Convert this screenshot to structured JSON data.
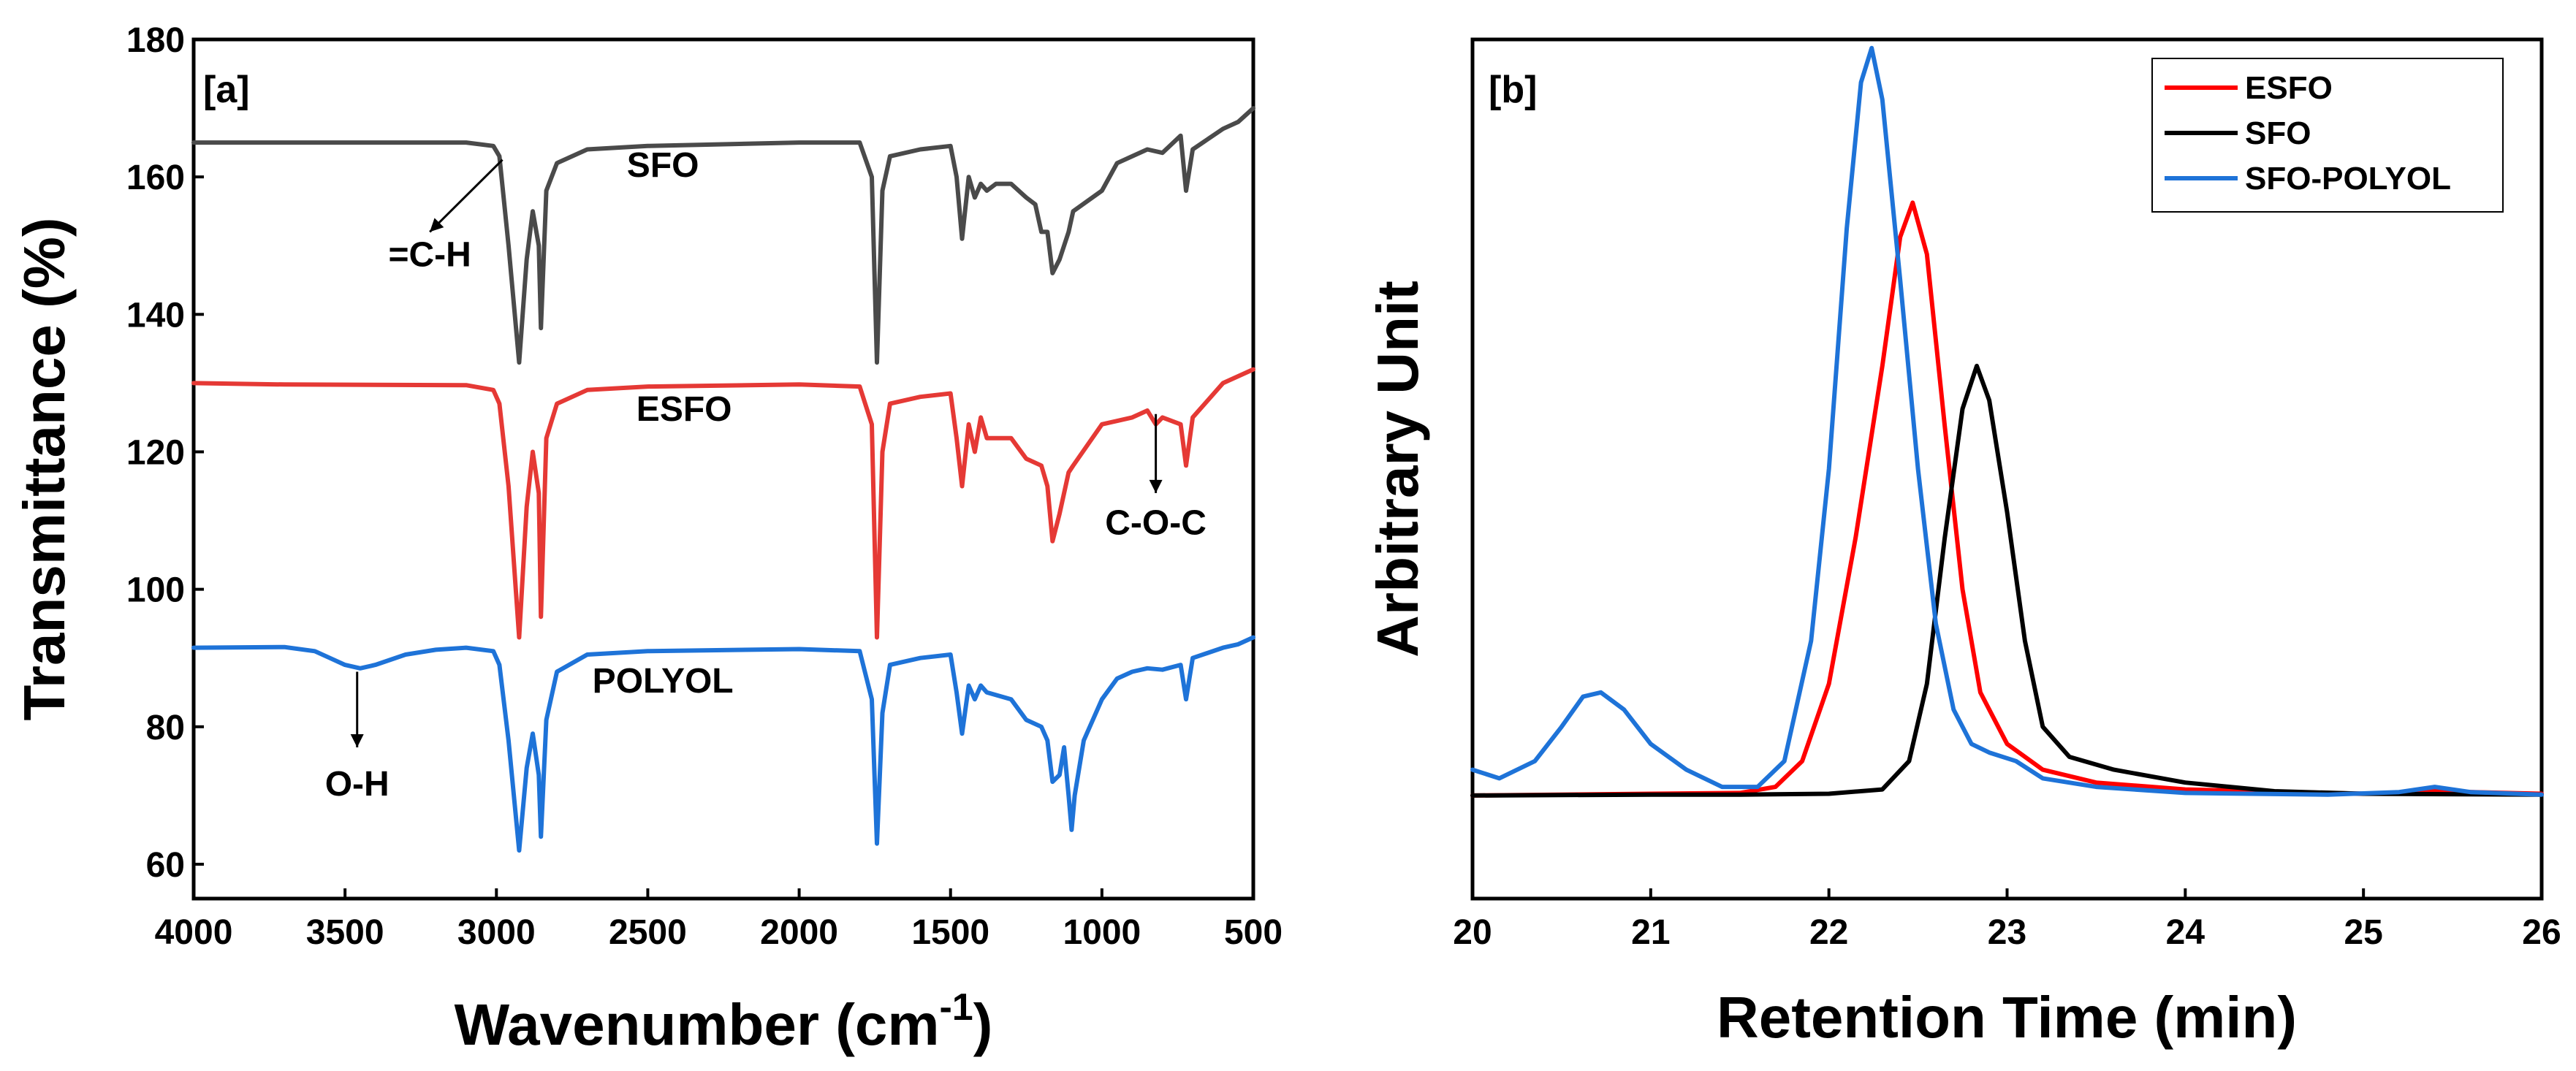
{
  "chart_data": [
    {
      "type": "line",
      "panel_label": "[a]",
      "xlabel": "Wavenumber (cm",
      "xlabel_sup": "-1",
      "xlabel_end": ")",
      "ylabel": "Transmittance (%)",
      "xlim": [
        4000,
        500
      ],
      "ylim": [
        55,
        180
      ],
      "x_ticks": [
        4000,
        3500,
        3000,
        2500,
        2000,
        1500,
        1000,
        500
      ],
      "y_ticks": [
        60,
        80,
        100,
        120,
        140,
        160,
        180
      ],
      "series": [
        {
          "name": "SFO",
          "color": "#4a4a4a",
          "points": [
            [
              4000,
              165
            ],
            [
              3700,
              165
            ],
            [
              3100,
              165
            ],
            [
              3010,
              164.5
            ],
            [
              2990,
              163
            ],
            [
              2960,
              150
            ],
            [
              2925,
              133
            ],
            [
              2900,
              148
            ],
            [
              2880,
              155
            ],
            [
              2860,
              150
            ],
            [
              2853,
              138
            ],
            [
              2835,
              158
            ],
            [
              2800,
              162
            ],
            [
              2700,
              164
            ],
            [
              2500,
              164.5
            ],
            [
              2000,
              165
            ],
            [
              1800,
              165
            ],
            [
              1760,
              160
            ],
            [
              1743,
              133
            ],
            [
              1725,
              158
            ],
            [
              1700,
              163
            ],
            [
              1600,
              164
            ],
            [
              1500,
              164.5
            ],
            [
              1480,
              160
            ],
            [
              1462,
              151
            ],
            [
              1440,
              160
            ],
            [
              1420,
              157
            ],
            [
              1400,
              159
            ],
            [
              1380,
              158
            ],
            [
              1350,
              159
            ],
            [
              1300,
              159
            ],
            [
              1250,
              157
            ],
            [
              1220,
              156
            ],
            [
              1200,
              152
            ],
            [
              1180,
              152
            ],
            [
              1163,
              146
            ],
            [
              1140,
              148
            ],
            [
              1110,
              152
            ],
            [
              1095,
              155
            ],
            [
              1000,
              158
            ],
            [
              950,
              162
            ],
            [
              900,
              163
            ],
            [
              850,
              164
            ],
            [
              800,
              163.5
            ],
            [
              740,
              166
            ],
            [
              722,
              158
            ],
            [
              700,
              164
            ],
            [
              600,
              167
            ],
            [
              550,
              168
            ],
            [
              500,
              170
            ]
          ]
        },
        {
          "name": "ESFO",
          "color": "#e53935",
          "points": [
            [
              4000,
              130
            ],
            [
              3700,
              129.8
            ],
            [
              3100,
              129.7
            ],
            [
              3010,
              129
            ],
            [
              2990,
              127
            ],
            [
              2960,
              115
            ],
            [
              2925,
              93
            ],
            [
              2900,
              112
            ],
            [
              2880,
              120
            ],
            [
              2860,
              114
            ],
            [
              2853,
              96
            ],
            [
              2835,
              122
            ],
            [
              2800,
              127
            ],
            [
              2700,
              129
            ],
            [
              2500,
              129.5
            ],
            [
              2000,
              129.8
            ],
            [
              1800,
              129.5
            ],
            [
              1760,
              124
            ],
            [
              1743,
              93
            ],
            [
              1725,
              120
            ],
            [
              1700,
              127
            ],
            [
              1600,
              128
            ],
            [
              1500,
              128.5
            ],
            [
              1480,
              122
            ],
            [
              1462,
              115
            ],
            [
              1440,
              124
            ],
            [
              1420,
              120
            ],
            [
              1400,
              125
            ],
            [
              1380,
              122
            ],
            [
              1300,
              122
            ],
            [
              1250,
              119
            ],
            [
              1200,
              118
            ],
            [
              1180,
              115
            ],
            [
              1163,
              107
            ],
            [
              1140,
              111
            ],
            [
              1110,
              117
            ],
            [
              1095,
              118
            ],
            [
              1000,
              124
            ],
            [
              900,
              125
            ],
            [
              850,
              126
            ],
            [
              822,
              124
            ],
            [
              800,
              125
            ],
            [
              740,
              124
            ],
            [
              722,
              118
            ],
            [
              700,
              125
            ],
            [
              600,
              130
            ],
            [
              550,
              131
            ],
            [
              500,
              132
            ]
          ]
        },
        {
          "name": "POLYOL",
          "color": "#1e73d8",
          "points": [
            [
              4000,
              91.5
            ],
            [
              3700,
              91.6
            ],
            [
              3600,
              91
            ],
            [
              3550,
              90
            ],
            [
              3500,
              89
            ],
            [
              3450,
              88.5
            ],
            [
              3400,
              89
            ],
            [
              3300,
              90.5
            ],
            [
              3200,
              91.2
            ],
            [
              3100,
              91.5
            ],
            [
              3010,
              91
            ],
            [
              2990,
              89
            ],
            [
              2960,
              78
            ],
            [
              2925,
              62
            ],
            [
              2900,
              74
            ],
            [
              2880,
              79
            ],
            [
              2860,
              73
            ],
            [
              2853,
              64
            ],
            [
              2835,
              81
            ],
            [
              2800,
              88
            ],
            [
              2700,
              90.5
            ],
            [
              2500,
              91
            ],
            [
              2000,
              91.3
            ],
            [
              1800,
              91
            ],
            [
              1760,
              84
            ],
            [
              1743,
              63
            ],
            [
              1725,
              82
            ],
            [
              1700,
              89
            ],
            [
              1600,
              90
            ],
            [
              1500,
              90.5
            ],
            [
              1480,
              85
            ],
            [
              1462,
              79
            ],
            [
              1440,
              86
            ],
            [
              1420,
              84
            ],
            [
              1400,
              86
            ],
            [
              1380,
              85
            ],
            [
              1300,
              84
            ],
            [
              1250,
              81
            ],
            [
              1200,
              80
            ],
            [
              1180,
              78
            ],
            [
              1163,
              72
            ],
            [
              1140,
              73
            ],
            [
              1125,
              77
            ],
            [
              1110,
              70
            ],
            [
              1100,
              65
            ],
            [
              1090,
              70
            ],
            [
              1060,
              78
            ],
            [
              1000,
              84
            ],
            [
              950,
              87
            ],
            [
              900,
              88
            ],
            [
              850,
              88.5
            ],
            [
              800,
              88.3
            ],
            [
              740,
              89
            ],
            [
              722,
              84
            ],
            [
              700,
              90
            ],
            [
              600,
              91.5
            ],
            [
              550,
              92
            ],
            [
              500,
              93
            ]
          ]
        }
      ],
      "series_labels": [
        {
          "text": "SFO",
          "x": 2450,
          "y": 160
        },
        {
          "text": "ESFO",
          "x": 2380,
          "y": 124.5
        },
        {
          "text": "POLYOL",
          "x": 2450,
          "y": 85
        }
      ],
      "annotations": [
        {
          "text": "=C-H",
          "arrow_from": [
            2980,
            162.5
          ],
          "arrow_to": [
            3220,
            152
          ],
          "label_at": [
            3220,
            147
          ]
        },
        {
          "text": "C-O-C",
          "arrow_from": [
            822,
            125.5
          ],
          "arrow_to": [
            822,
            114
          ],
          "label_at": [
            822,
            108
          ]
        },
        {
          "text": "O-H",
          "arrow_from": [
            3460,
            88
          ],
          "arrow_to": [
            3460,
            77
          ],
          "label_at": [
            3460,
            70
          ]
        }
      ]
    },
    {
      "type": "line",
      "panel_label": "[b]",
      "xlabel": "Retention Time (min)",
      "ylabel": "Arbitrary Unit",
      "xlim": [
        20,
        26
      ],
      "ylim": [
        0,
        1
      ],
      "x_ticks": [
        20,
        21,
        22,
        23,
        24,
        25,
        26
      ],
      "y_ticks": [],
      "legend_position": "top-right",
      "series": [
        {
          "name": "ESFO",
          "color": "#ff0000",
          "points": [
            [
              20,
              0.12
            ],
            [
              21,
              0.122
            ],
            [
              21.5,
              0.123
            ],
            [
              21.7,
              0.13
            ],
            [
              21.85,
              0.16
            ],
            [
              22.0,
              0.25
            ],
            [
              22.15,
              0.42
            ],
            [
              22.3,
              0.62
            ],
            [
              22.4,
              0.77
            ],
            [
              22.47,
              0.81
            ],
            [
              22.55,
              0.75
            ],
            [
              22.65,
              0.55
            ],
            [
              22.75,
              0.36
            ],
            [
              22.85,
              0.24
            ],
            [
              23.0,
              0.18
            ],
            [
              23.2,
              0.15
            ],
            [
              23.5,
              0.135
            ],
            [
              24,
              0.127
            ],
            [
              25,
              0.122
            ],
            [
              25.4,
              0.125
            ],
            [
              26,
              0.122
            ]
          ]
        },
        {
          "name": "SFO",
          "color": "#000000",
          "points": [
            [
              20,
              0.12
            ],
            [
              21,
              0.121
            ],
            [
              21.5,
              0.121
            ],
            [
              22.0,
              0.122
            ],
            [
              22.3,
              0.127
            ],
            [
              22.45,
              0.16
            ],
            [
              22.55,
              0.25
            ],
            [
              22.65,
              0.42
            ],
            [
              22.75,
              0.57
            ],
            [
              22.83,
              0.62
            ],
            [
              22.9,
              0.58
            ],
            [
              23.0,
              0.45
            ],
            [
              23.1,
              0.3
            ],
            [
              23.2,
              0.2
            ],
            [
              23.35,
              0.165
            ],
            [
              23.6,
              0.15
            ],
            [
              24.0,
              0.135
            ],
            [
              24.5,
              0.125
            ],
            [
              25,
              0.122
            ],
            [
              26,
              0.121
            ]
          ]
        },
        {
          "name": "SFO-POLYOL",
          "color": "#1e73d8",
          "points": [
            [
              20,
              0.15
            ],
            [
              20.15,
              0.14
            ],
            [
              20.35,
              0.16
            ],
            [
              20.5,
              0.2
            ],
            [
              20.62,
              0.235
            ],
            [
              20.72,
              0.24
            ],
            [
              20.85,
              0.22
            ],
            [
              21.0,
              0.18
            ],
            [
              21.2,
              0.15
            ],
            [
              21.4,
              0.13
            ],
            [
              21.6,
              0.13
            ],
            [
              21.75,
              0.16
            ],
            [
              21.9,
              0.3
            ],
            [
              22.0,
              0.5
            ],
            [
              22.1,
              0.78
            ],
            [
              22.18,
              0.95
            ],
            [
              22.24,
              0.99
            ],
            [
              22.3,
              0.93
            ],
            [
              22.4,
              0.72
            ],
            [
              22.5,
              0.5
            ],
            [
              22.6,
              0.32
            ],
            [
              22.7,
              0.22
            ],
            [
              22.8,
              0.18
            ],
            [
              22.9,
              0.17
            ],
            [
              23.05,
              0.16
            ],
            [
              23.2,
              0.14
            ],
            [
              23.5,
              0.13
            ],
            [
              24.0,
              0.123
            ],
            [
              24.8,
              0.121
            ],
            [
              25.2,
              0.124
            ],
            [
              25.4,
              0.13
            ],
            [
              25.6,
              0.124
            ],
            [
              26,
              0.121
            ]
          ]
        }
      ]
    }
  ]
}
